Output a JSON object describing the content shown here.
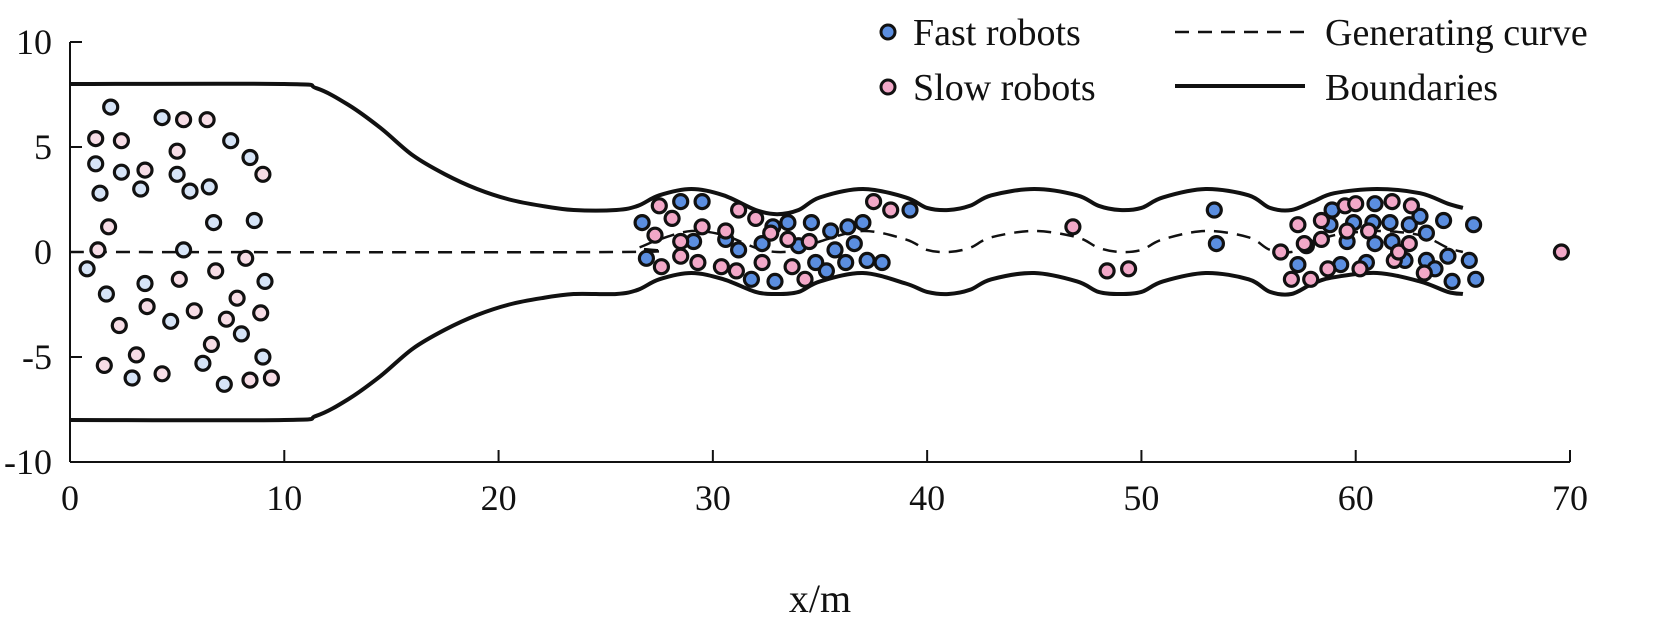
{
  "chart_data": {
    "type": "scatter",
    "xlabel": "x/m",
    "ylabel": "",
    "xlim": [
      0,
      70
    ],
    "ylim": [
      -10,
      10
    ],
    "xticks": [
      0,
      10,
      20,
      30,
      40,
      50,
      60,
      70
    ],
    "yticks": [
      -10,
      -5,
      0,
      5,
      10
    ],
    "grid": false,
    "legend_placement": "top-right",
    "legend": [
      {
        "label": "Fast robots",
        "kind": "marker",
        "color": "#5b8ee0"
      },
      {
        "label": "Slow robots",
        "kind": "marker",
        "color": "#f2a8c8"
      },
      {
        "label": "Generating curve",
        "kind": "dashed-line",
        "color": "#111111"
      },
      {
        "label": "Boundaries",
        "kind": "solid-line",
        "color": "#111111"
      }
    ],
    "colors": {
      "fast": "#5b8ee0",
      "fast_pale": "#d6e4f7",
      "slow": "#f2a8c8",
      "slow_pale": "#f7dde6",
      "line": "#111111"
    },
    "boundaries": {
      "upper": [
        [
          0,
          8
        ],
        [
          10,
          8
        ],
        [
          11.5,
          7.8
        ],
        [
          13,
          7
        ],
        [
          14.5,
          5.9
        ],
        [
          16,
          4.6
        ],
        [
          17.5,
          3.7
        ],
        [
          19,
          3.0
        ],
        [
          20.5,
          2.5
        ],
        [
          22,
          2.2
        ],
        [
          23.5,
          2.0
        ],
        [
          25.5,
          2.0
        ],
        [
          26.5,
          2.2
        ],
        [
          27.5,
          2.7
        ],
        [
          29,
          3.0
        ],
        [
          30.5,
          2.7
        ],
        [
          32,
          2.0
        ],
        [
          33,
          1.8
        ],
        [
          34,
          2.0
        ],
        [
          35,
          2.6
        ],
        [
          37,
          3.0
        ],
        [
          39,
          2.6
        ],
        [
          40,
          2.1
        ],
        [
          41,
          2.0
        ],
        [
          42,
          2.2
        ],
        [
          43,
          2.7
        ],
        [
          45,
          3.0
        ],
        [
          47,
          2.7
        ],
        [
          48,
          2.2
        ],
        [
          49,
          2.0
        ],
        [
          50,
          2.1
        ],
        [
          51,
          2.6
        ],
        [
          53,
          3.0
        ],
        [
          55,
          2.7
        ],
        [
          56,
          2.1
        ],
        [
          57,
          2.0
        ],
        [
          58,
          2.4
        ],
        [
          59,
          2.8
        ],
        [
          61,
          3.0
        ],
        [
          63,
          2.8
        ],
        [
          64.3,
          2.3
        ],
        [
          65,
          2.1
        ]
      ],
      "lower": [
        [
          0,
          -8
        ],
        [
          10,
          -8
        ],
        [
          11.5,
          -7.8
        ],
        [
          13,
          -7
        ],
        [
          14.5,
          -5.9
        ],
        [
          16,
          -4.6
        ],
        [
          17.5,
          -3.7
        ],
        [
          19,
          -3.0
        ],
        [
          20.5,
          -2.5
        ],
        [
          22,
          -2.2
        ],
        [
          23.5,
          -2.0
        ],
        [
          25.5,
          -2.0
        ],
        [
          26.5,
          -1.8
        ],
        [
          27.5,
          -1.3
        ],
        [
          29,
          -1.0
        ],
        [
          30.5,
          -1.3
        ],
        [
          32,
          -1.9
        ],
        [
          33,
          -2.0
        ],
        [
          34,
          -1.9
        ],
        [
          35,
          -1.4
        ],
        [
          37,
          -1.0
        ],
        [
          39,
          -1.5
        ],
        [
          40,
          -1.9
        ],
        [
          41,
          -2.0
        ],
        [
          42,
          -1.8
        ],
        [
          43,
          -1.3
        ],
        [
          45,
          -1.0
        ],
        [
          47,
          -1.4
        ],
        [
          48,
          -1.9
        ],
        [
          49,
          -2.0
        ],
        [
          50,
          -1.9
        ],
        [
          51,
          -1.4
        ],
        [
          53,
          -1.0
        ],
        [
          55,
          -1.3
        ],
        [
          56,
          -1.9
        ],
        [
          57,
          -2.0
        ],
        [
          58,
          -1.5
        ],
        [
          59,
          -1.2
        ],
        [
          61,
          -1.0
        ],
        [
          63,
          -1.4
        ],
        [
          64.3,
          -1.9
        ],
        [
          65,
          -2.0
        ]
      ]
    },
    "generating_curve": [
      [
        0,
        0
      ],
      [
        25.5,
        0
      ],
      [
        26.5,
        0.2
      ],
      [
        27.5,
        0.6
      ],
      [
        29,
        1.0
      ],
      [
        30.5,
        0.8
      ],
      [
        32,
        0.2
      ],
      [
        33,
        0
      ],
      [
        34,
        0.1
      ],
      [
        35,
        0.5
      ],
      [
        37,
        1.0
      ],
      [
        39,
        0.6
      ],
      [
        40,
        0.1
      ],
      [
        41,
        0
      ],
      [
        42,
        0.2
      ],
      [
        43,
        0.7
      ],
      [
        45,
        1.0
      ],
      [
        47,
        0.7
      ],
      [
        48,
        0.2
      ],
      [
        49,
        0
      ],
      [
        50,
        0.1
      ],
      [
        51,
        0.6
      ],
      [
        53,
        1.0
      ],
      [
        55,
        0.7
      ],
      [
        56,
        0.1
      ],
      [
        57,
        0
      ],
      [
        58,
        0.4
      ],
      [
        59,
        0.8
      ],
      [
        61,
        1.0
      ],
      [
        63,
        0.8
      ],
      [
        64.3,
        0.2
      ],
      [
        65,
        0
      ]
    ],
    "series": [
      {
        "name": "Fast robots",
        "points": [
          [
            26.7,
            1.4
          ],
          [
            26.9,
            -0.3
          ],
          [
            28.5,
            2.4
          ],
          [
            29.1,
            0.5
          ],
          [
            29.5,
            2.4
          ],
          [
            30.6,
            0.6
          ],
          [
            31.2,
            0.1
          ],
          [
            31.8,
            -1.3
          ],
          [
            32.3,
            0.4
          ],
          [
            32.8,
            1.2
          ],
          [
            32.9,
            -1.4
          ],
          [
            33.5,
            1.4
          ],
          [
            34.0,
            0.3
          ],
          [
            34.6,
            1.4
          ],
          [
            34.8,
            -0.5
          ],
          [
            35.3,
            -0.9
          ],
          [
            35.5,
            1.0
          ],
          [
            35.7,
            0.1
          ],
          [
            36.2,
            -0.5
          ],
          [
            36.3,
            1.2
          ],
          [
            36.6,
            0.4
          ],
          [
            37.0,
            1.4
          ],
          [
            37.2,
            -0.4
          ],
          [
            37.9,
            -0.5
          ],
          [
            39.2,
            2.0
          ],
          [
            53.4,
            2.0
          ],
          [
            53.5,
            0.4
          ],
          [
            57.3,
            -0.6
          ],
          [
            57.7,
            0.3
          ],
          [
            58.8,
            1.3
          ],
          [
            58.9,
            2.0
          ],
          [
            59.3,
            -0.6
          ],
          [
            59.6,
            0.5
          ],
          [
            59.9,
            1.4
          ],
          [
            60.5,
            -0.5
          ],
          [
            60.8,
            1.4
          ],
          [
            60.9,
            0.4
          ],
          [
            60.9,
            2.3
          ],
          [
            61.6,
            1.4
          ],
          [
            61.7,
            0.5
          ],
          [
            62.3,
            -0.4
          ],
          [
            62.5,
            1.3
          ],
          [
            63.0,
            1.7
          ],
          [
            63.3,
            0.9
          ],
          [
            63.3,
            -0.4
          ],
          [
            63.7,
            -0.8
          ],
          [
            64.1,
            1.5
          ],
          [
            64.3,
            -0.2
          ],
          [
            64.5,
            -1.4
          ],
          [
            65.3,
            -0.4
          ],
          [
            65.5,
            1.3
          ],
          [
            65.6,
            -1.3
          ]
        ]
      },
      {
        "name": "Slow robots",
        "points": [
          [
            27.3,
            0.8
          ],
          [
            27.5,
            2.2
          ],
          [
            27.6,
            -0.7
          ],
          [
            28.1,
            1.6
          ],
          [
            28.5,
            0.5
          ],
          [
            28.5,
            -0.2
          ],
          [
            29.3,
            -0.5
          ],
          [
            29.5,
            1.2
          ],
          [
            30.4,
            -0.7
          ],
          [
            30.6,
            1.0
          ],
          [
            31.1,
            -0.9
          ],
          [
            31.2,
            2.0
          ],
          [
            32.0,
            1.6
          ],
          [
            32.3,
            -0.5
          ],
          [
            32.7,
            0.9
          ],
          [
            33.5,
            0.6
          ],
          [
            33.7,
            -0.7
          ],
          [
            34.3,
            -1.3
          ],
          [
            34.5,
            0.5
          ],
          [
            37.5,
            2.4
          ],
          [
            38.3,
            2.0
          ],
          [
            46.8,
            1.2
          ],
          [
            48.4,
            -0.9
          ],
          [
            49.4,
            -0.8
          ],
          [
            56.5,
            0.0
          ],
          [
            57.0,
            -1.3
          ],
          [
            57.3,
            1.3
          ],
          [
            57.6,
            0.4
          ],
          [
            57.9,
            -1.3
          ],
          [
            58.4,
            1.5
          ],
          [
            58.4,
            0.6
          ],
          [
            58.7,
            -0.8
          ],
          [
            59.5,
            2.2
          ],
          [
            59.6,
            1.0
          ],
          [
            60.0,
            2.3
          ],
          [
            60.2,
            -0.8
          ],
          [
            60.6,
            1.0
          ],
          [
            61.7,
            2.4
          ],
          [
            61.8,
            -0.4
          ],
          [
            62.0,
            0.0
          ],
          [
            62.5,
            0.4
          ],
          [
            62.6,
            2.2
          ],
          [
            63.2,
            -1.0
          ],
          [
            69.6,
            0.0
          ]
        ]
      },
      {
        "name": "",
        "style": "faded",
        "points": [
          [
            0.8,
            -0.8
          ],
          [
            1.2,
            5.4
          ],
          [
            1.2,
            4.2
          ],
          [
            1.3,
            0.1
          ],
          [
            1.4,
            2.8
          ],
          [
            1.6,
            -5.4
          ],
          [
            1.7,
            -2.0
          ],
          [
            1.8,
            1.2
          ],
          [
            1.9,
            6.9
          ],
          [
            2.3,
            -3.5
          ],
          [
            2.4,
            3.8
          ],
          [
            2.4,
            5.3
          ],
          [
            2.9,
            -6.0
          ],
          [
            3.1,
            -4.9
          ],
          [
            3.3,
            3.0
          ],
          [
            3.5,
            3.9
          ],
          [
            3.5,
            -1.5
          ],
          [
            3.6,
            -2.6
          ],
          [
            4.3,
            6.4
          ],
          [
            4.3,
            -5.8
          ],
          [
            4.7,
            -3.3
          ],
          [
            5.0,
            4.8
          ],
          [
            5.0,
            3.7
          ],
          [
            5.1,
            -1.3
          ],
          [
            5.3,
            0.1
          ],
          [
            5.3,
            6.3
          ],
          [
            5.6,
            2.9
          ],
          [
            5.8,
            -2.8
          ],
          [
            6.2,
            -5.3
          ],
          [
            6.4,
            6.3
          ],
          [
            6.5,
            3.1
          ],
          [
            6.6,
            -4.4
          ],
          [
            6.7,
            1.4
          ],
          [
            6.8,
            -0.9
          ],
          [
            7.2,
            -6.3
          ],
          [
            7.3,
            -3.2
          ],
          [
            7.5,
            5.3
          ],
          [
            7.8,
            -2.2
          ],
          [
            8.0,
            -3.9
          ],
          [
            8.2,
            -0.3
          ],
          [
            8.4,
            4.5
          ],
          [
            8.4,
            -6.1
          ],
          [
            8.6,
            1.5
          ],
          [
            8.9,
            -2.9
          ],
          [
            9.0,
            -5.0
          ],
          [
            9.0,
            3.7
          ],
          [
            9.1,
            -1.4
          ],
          [
            9.4,
            -6.0
          ]
        ]
      }
    ]
  }
}
